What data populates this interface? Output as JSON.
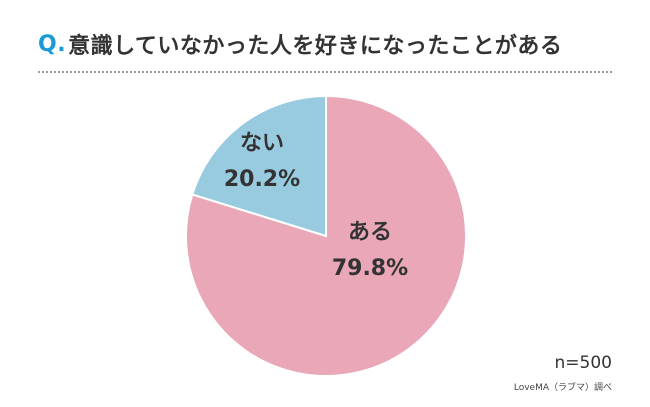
{
  "header": {
    "q_mark": "Q.",
    "question": "意識していなかった人を好きになったことがある"
  },
  "chart_data": {
    "type": "pie",
    "title": "Q.意識していなかった人を好きになったことがある",
    "slices": [
      {
        "label": "ある",
        "value": 79.8,
        "display": "79.8%",
        "color": "#e9a7b7"
      },
      {
        "label": "ない",
        "value": 20.2,
        "display": "20.2%",
        "color": "#99cbe0"
      }
    ],
    "start_angle_deg": 0,
    "direction": "clockwise",
    "stroke_color": "#ffffff"
  },
  "footer": {
    "sample": "n=500",
    "source": "LoveMA（ラブマ）調べ"
  }
}
